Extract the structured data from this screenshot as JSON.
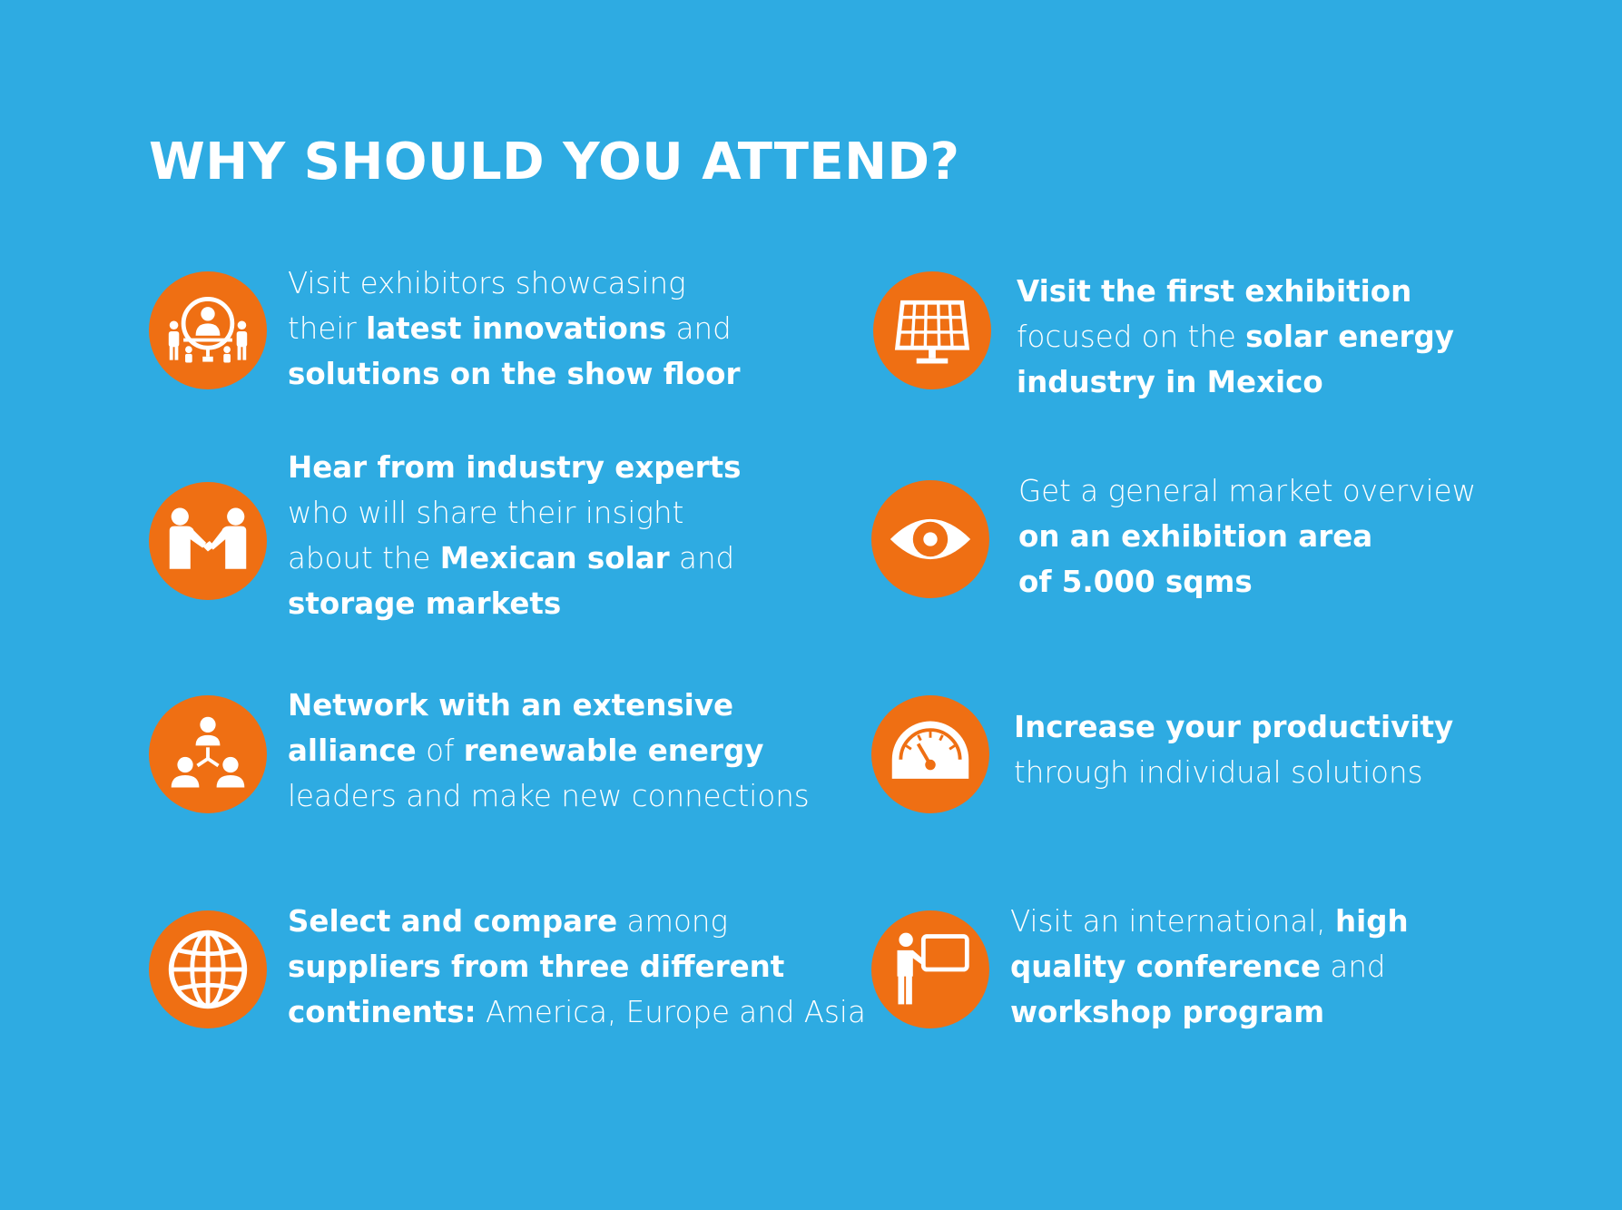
{
  "page": {
    "title": "WHY SHOULD YOU ATTEND?",
    "background_color": "#2eabe2",
    "accent_color": "#ef6f13",
    "text_color": "#ffffff"
  },
  "items": [
    {
      "icon": "exhibitors-showcase-icon",
      "lines": [
        [
          {
            "t": "Visit exhibitors showcasing",
            "b": false
          }
        ],
        [
          {
            "t": "their ",
            "b": false
          },
          {
            "t": "latest innovations",
            "b": true
          },
          {
            "t": " and",
            "b": false
          }
        ],
        [
          {
            "t": "solutions on the show floor",
            "b": true
          }
        ]
      ]
    },
    {
      "icon": "handshake-icon",
      "lines": [
        [
          {
            "t": "Hear from industry experts",
            "b": true
          }
        ],
        [
          {
            "t": "who will share their insight",
            "b": false
          }
        ],
        [
          {
            "t": "about the ",
            "b": false
          },
          {
            "t": "Mexican solar",
            "b": true
          },
          {
            "t": " and",
            "b": false
          }
        ],
        [
          {
            "t": "storage markets",
            "b": true
          }
        ]
      ]
    },
    {
      "icon": "network-icon",
      "lines": [
        [
          {
            "t": "Network with an extensive",
            "b": true
          }
        ],
        [
          {
            "t": "alliance",
            "b": true
          },
          {
            "t": " of ",
            "b": false
          },
          {
            "t": "renewable energy",
            "b": true
          }
        ],
        [
          {
            "t": "leaders and make new connections",
            "b": false
          }
        ]
      ]
    },
    {
      "icon": "globe-icon",
      "lines": [
        [
          {
            "t": "Select and compare",
            "b": true
          },
          {
            "t": " among",
            "b": false
          }
        ],
        [
          {
            "t": "suppliers from three different",
            "b": true
          }
        ],
        [
          {
            "t": "continents:",
            "b": true
          },
          {
            "t": " America, Europe and Asia",
            "b": false
          }
        ]
      ]
    },
    {
      "icon": "solar-panel-icon",
      "lines": [
        [
          {
            "t": "Visit the first exhibition",
            "b": true
          }
        ],
        [
          {
            "t": "focused on the ",
            "b": false
          },
          {
            "t": "solar energy",
            "b": true
          }
        ],
        [
          {
            "t": "industry in Mexico",
            "b": true
          }
        ]
      ]
    },
    {
      "icon": "eye-icon",
      "lines": [
        [
          {
            "t": "Get a general market overview",
            "b": false
          }
        ],
        [
          {
            "t": "on an exhibition area",
            "b": true
          }
        ],
        [
          {
            "t": "of 5.000 sqms",
            "b": true
          }
        ]
      ]
    },
    {
      "icon": "speedometer-icon",
      "lines": [
        [
          {
            "t": "Increase your productivity",
            "b": true
          }
        ],
        [
          {
            "t": "through individual solutions",
            "b": false
          }
        ]
      ]
    },
    {
      "icon": "presenter-board-icon",
      "lines": [
        [
          {
            "t": "Visit an international, ",
            "b": false
          },
          {
            "t": "high",
            "b": true
          }
        ],
        [
          {
            "t": "quality conference",
            "b": true
          },
          {
            "t": " and",
            "b": false
          }
        ],
        [
          {
            "t": "workshop program",
            "b": true
          }
        ]
      ]
    }
  ]
}
